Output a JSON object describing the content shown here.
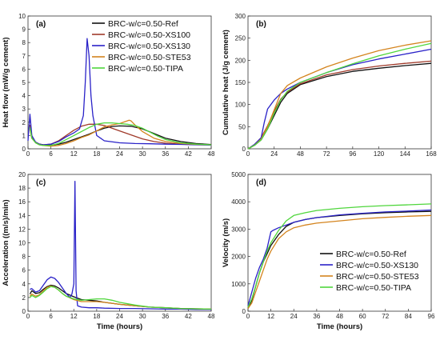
{
  "chart_data": [
    {
      "type": "line",
      "panel_label": "(a)",
      "xlabel": "",
      "ylabel": "Heat flow (mW/g cement)",
      "xlim": [
        0,
        48
      ],
      "ylim": [
        0,
        10
      ],
      "xticks": [
        0,
        6,
        12,
        18,
        24,
        30,
        36,
        42,
        48
      ],
      "yticks": [
        0,
        1,
        2,
        3,
        4,
        5,
        6,
        7,
        8,
        9,
        10
      ],
      "legend_position": "top-right",
      "series": [
        {
          "name": "BRC-w/c=0.50-Ref",
          "color": "#111111",
          "x": [
            0.5,
            1,
            2,
            3,
            4,
            6,
            8,
            10,
            12,
            14,
            16,
            18,
            20,
            22,
            24,
            27,
            30,
            33,
            36,
            40,
            44,
            48
          ],
          "y": [
            1.6,
            0.8,
            0.5,
            0.35,
            0.3,
            0.28,
            0.35,
            0.5,
            0.7,
            0.9,
            1.1,
            1.35,
            1.55,
            1.68,
            1.72,
            1.7,
            1.5,
            1.15,
            0.8,
            0.55,
            0.4,
            0.32
          ]
        },
        {
          "name": "BRC-w/c=0.50-XS100",
          "color": "#a03a2a",
          "x": [
            0.5,
            1,
            2,
            3,
            4,
            6,
            8,
            10,
            12,
            14,
            16,
            18,
            20,
            22,
            24,
            27,
            30,
            33,
            36,
            40,
            44,
            48
          ],
          "y": [
            1.8,
            0.9,
            0.5,
            0.35,
            0.3,
            0.35,
            0.6,
            1.0,
            1.4,
            1.7,
            1.85,
            1.85,
            1.75,
            1.55,
            1.35,
            1.05,
            0.75,
            0.55,
            0.42,
            0.35,
            0.32,
            0.3
          ]
        },
        {
          "name": "BRC-w/c=0.50-XS130",
          "color": "#2a22c8",
          "x": [
            0,
            0.5,
            1,
            2,
            3,
            4,
            6,
            8,
            10,
            12,
            13.5,
            14.5,
            15,
            15.5,
            16,
            16.5,
            17,
            18,
            20,
            24,
            28,
            32,
            36,
            40,
            44,
            48
          ],
          "y": [
            0.6,
            2.6,
            1.0,
            0.5,
            0.35,
            0.3,
            0.35,
            0.55,
            0.9,
            1.2,
            1.5,
            2.5,
            5.0,
            8.3,
            7.0,
            4.0,
            2.5,
            1.0,
            0.6,
            0.45,
            0.4,
            0.38,
            0.35,
            0.33,
            0.3,
            0.28
          ]
        },
        {
          "name": "BRC-w/c=0.50-STE53",
          "color": "#d4841e",
          "x": [
            0.5,
            1,
            2,
            3,
            4,
            6,
            8,
            10,
            12,
            14,
            16,
            18,
            20,
            22,
            24,
            25,
            26,
            26.5,
            27,
            28,
            30,
            33,
            36,
            40,
            44,
            48
          ],
          "y": [
            1.5,
            0.8,
            0.45,
            0.3,
            0.25,
            0.2,
            0.25,
            0.4,
            0.6,
            0.85,
            1.05,
            1.35,
            1.65,
            1.8,
            1.9,
            2.0,
            2.1,
            2.15,
            2.1,
            1.8,
            1.3,
            0.8,
            0.55,
            0.4,
            0.33,
            0.3
          ]
        },
        {
          "name": "BRC-w/c=0.50-TIPA",
          "color": "#4fd63c",
          "x": [
            0.5,
            1,
            2,
            3,
            4,
            6,
            8,
            10,
            12,
            14,
            16,
            18,
            20,
            22,
            24,
            26,
            28,
            30,
            32,
            34,
            36,
            40,
            44,
            48
          ],
          "y": [
            1.6,
            0.8,
            0.45,
            0.3,
            0.25,
            0.25,
            0.4,
            0.7,
            1.0,
            1.3,
            1.6,
            1.85,
            1.95,
            1.95,
            1.9,
            1.85,
            1.75,
            1.55,
            1.25,
            0.95,
            0.7,
            0.45,
            0.35,
            0.3
          ]
        }
      ]
    },
    {
      "type": "line",
      "panel_label": "(b)",
      "xlabel": "",
      "ylabel": "Cumulative heat (J/g cement)",
      "xlim": [
        0,
        168
      ],
      "ylim": [
        0,
        300
      ],
      "xticks": [
        0,
        24,
        48,
        72,
        96,
        120,
        144,
        168
      ],
      "yticks": [
        0,
        50,
        100,
        150,
        200,
        250,
        300
      ],
      "series": [
        {
          "name": "Ref",
          "color": "#111111",
          "x": [
            0,
            6,
            12,
            18,
            24,
            30,
            36,
            48,
            72,
            96,
            120,
            144,
            168
          ],
          "y": [
            0,
            8,
            20,
            45,
            75,
            105,
            125,
            145,
            163,
            175,
            182,
            188,
            193
          ]
        },
        {
          "name": "XS100",
          "color": "#a03a2a",
          "x": [
            0,
            6,
            12,
            18,
            24,
            30,
            36,
            48,
            72,
            96,
            120,
            144,
            168
          ],
          "y": [
            0,
            10,
            25,
            52,
            85,
            112,
            128,
            147,
            167,
            179,
            187,
            193,
            198
          ]
        },
        {
          "name": "XS130",
          "color": "#2a22c8",
          "x": [
            0,
            6,
            12,
            15,
            18,
            24,
            30,
            36,
            48,
            72,
            96,
            120,
            144,
            168
          ],
          "y": [
            0,
            10,
            25,
            60,
            90,
            110,
            125,
            135,
            150,
            172,
            190,
            203,
            214,
            225
          ]
        },
        {
          "name": "STE53",
          "color": "#d4841e",
          "x": [
            0,
            6,
            12,
            18,
            24,
            30,
            36,
            48,
            72,
            96,
            120,
            144,
            168
          ],
          "y": [
            0,
            8,
            22,
            50,
            88,
            125,
            143,
            160,
            185,
            205,
            222,
            234,
            244
          ]
        },
        {
          "name": "TIPA",
          "color": "#4fd63c",
          "x": [
            0,
            6,
            12,
            18,
            24,
            30,
            36,
            48,
            72,
            96,
            120,
            144,
            168
          ],
          "y": [
            0,
            8,
            20,
            45,
            80,
            110,
            130,
            150,
            172,
            192,
            210,
            225,
            238
          ]
        }
      ]
    },
    {
      "type": "line",
      "panel_label": "(c)",
      "xlabel": "Time (hours)",
      "ylabel": "Acceleration ((m/s)/min)",
      "xlim": [
        0,
        48
      ],
      "ylim": [
        0,
        20
      ],
      "xticks": [
        0,
        6,
        12,
        18,
        24,
        30,
        36,
        42,
        48
      ],
      "yticks": [
        0,
        2,
        4,
        6,
        8,
        10,
        12,
        14,
        16,
        18,
        20
      ],
      "series": [
        {
          "name": "Ref",
          "color": "#111111",
          "x": [
            0.5,
            1,
            2,
            3,
            4,
            5,
            6,
            7,
            8,
            9,
            10,
            12,
            14,
            16,
            18,
            20,
            24,
            28,
            32,
            36,
            40,
            44,
            48
          ],
          "y": [
            2.5,
            3.0,
            2.6,
            2.7,
            3.2,
            3.6,
            3.8,
            3.7,
            3.4,
            3.0,
            2.6,
            2.1,
            1.7,
            1.6,
            1.5,
            1.3,
            1.0,
            0.8,
            0.6,
            0.5,
            0.4,
            0.35,
            0.3
          ]
        },
        {
          "name": "XS130",
          "color": "#2a22c8",
          "x": [
            0.5,
            1,
            2,
            3,
            4,
            5,
            6,
            7,
            8,
            9,
            10,
            11,
            11.5,
            12,
            12.3,
            12.6,
            13,
            14,
            16,
            18,
            20,
            24,
            28,
            32,
            36,
            40,
            44,
            48
          ],
          "y": [
            3.2,
            3.3,
            2.8,
            3.0,
            3.8,
            4.6,
            5.0,
            4.8,
            4.2,
            3.4,
            2.6,
            2.0,
            2.5,
            4.0,
            19.0,
            3.0,
            0.8,
            0.6,
            0.5,
            0.5,
            0.45,
            0.4,
            0.4,
            0.35,
            0.3,
            0.3,
            0.25,
            0.25
          ]
        },
        {
          "name": "STE53",
          "color": "#d4841e",
          "x": [
            0.5,
            1,
            2,
            3,
            4,
            5,
            6,
            7,
            8,
            9,
            10,
            12,
            14,
            16,
            18,
            20,
            24,
            28,
            32,
            36,
            40,
            44,
            48
          ],
          "y": [
            2.2,
            2.5,
            2.2,
            2.4,
            3.0,
            3.5,
            3.7,
            3.5,
            3.1,
            2.6,
            2.2,
            1.7,
            1.4,
            1.4,
            1.4,
            1.3,
            1.0,
            0.8,
            0.6,
            0.5,
            0.4,
            0.35,
            0.3
          ]
        },
        {
          "name": "TIPA",
          "color": "#4fd63c",
          "x": [
            0.5,
            1,
            2,
            3,
            4,
            5,
            6,
            7,
            8,
            9,
            10,
            12,
            14,
            16,
            18,
            20,
            22,
            24,
            28,
            32,
            36,
            40,
            44,
            48
          ],
          "y": [
            2.0,
            2.3,
            2.0,
            2.3,
            2.8,
            3.3,
            3.6,
            3.5,
            3.1,
            2.6,
            2.2,
            1.8,
            1.6,
            1.7,
            1.8,
            1.8,
            1.6,
            1.3,
            0.9,
            0.6,
            0.5,
            0.4,
            0.35,
            0.3
          ]
        }
      ]
    },
    {
      "type": "line",
      "panel_label": "(d)",
      "xlabel": "Time (hours)",
      "ylabel": "Velocity (m/s)",
      "xlim": [
        0,
        96
      ],
      "ylim": [
        0,
        5000
      ],
      "xticks": [
        0,
        12,
        24,
        36,
        48,
        60,
        72,
        84,
        96
      ],
      "yticks": [
        0,
        1000,
        2000,
        3000,
        4000,
        5000
      ],
      "legend_position": "bottom-right",
      "series": [
        {
          "name": "BRC-w/c=0.50-Ref",
          "color": "#111111",
          "x": [
            0,
            2,
            4,
            6,
            8,
            10,
            12,
            16,
            20,
            24,
            30,
            36,
            48,
            60,
            72,
            84,
            96
          ],
          "y": [
            100,
            400,
            900,
            1400,
            1800,
            2100,
            2400,
            2800,
            3100,
            3250,
            3350,
            3420,
            3500,
            3560,
            3600,
            3630,
            3650
          ]
        },
        {
          "name": "BRC-w/c=0.50-XS130",
          "color": "#2a22c8",
          "x": [
            0,
            2,
            4,
            6,
            8,
            10,
            11,
            12,
            13,
            16,
            20,
            24,
            30,
            36,
            48,
            60,
            72,
            84,
            96
          ],
          "y": [
            200,
            700,
            1200,
            1600,
            1900,
            2300,
            2600,
            2900,
            2950,
            3050,
            3150,
            3250,
            3350,
            3420,
            3520,
            3580,
            3630,
            3660,
            3700
          ]
        },
        {
          "name": "BRC-w/c=0.50-STE53",
          "color": "#d4841e",
          "x": [
            0,
            2,
            4,
            6,
            8,
            10,
            12,
            16,
            20,
            24,
            30,
            36,
            48,
            60,
            72,
            84,
            96
          ],
          "y": [
            100,
            300,
            700,
            1100,
            1500,
            1900,
            2200,
            2650,
            2900,
            3050,
            3150,
            3220,
            3300,
            3380,
            3430,
            3470,
            3500
          ]
        },
        {
          "name": "BRC-w/c=0.50-TIPA",
          "color": "#4fd63c",
          "x": [
            0,
            2,
            4,
            6,
            8,
            10,
            12,
            16,
            20,
            24,
            30,
            36,
            48,
            60,
            72,
            84,
            96
          ],
          "y": [
            150,
            450,
            900,
            1400,
            1800,
            2200,
            2500,
            2950,
            3300,
            3500,
            3600,
            3680,
            3760,
            3820,
            3860,
            3890,
            3920
          ]
        }
      ]
    }
  ]
}
